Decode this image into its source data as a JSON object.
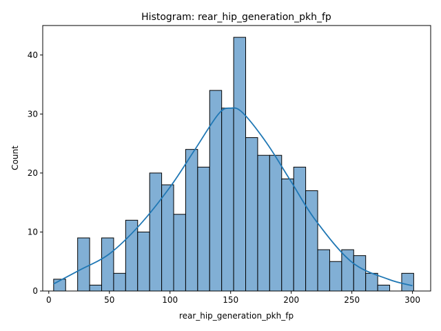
{
  "chart_data": {
    "type": "bar",
    "title": "Histogram: rear_hip_generation_pkh_fp",
    "xlabel": "rear_hip_generation_pkh_fp",
    "ylabel": "Count",
    "xlim": [
      -5,
      315
    ],
    "ylim": [
      0,
      45
    ],
    "xticks": [
      0,
      50,
      100,
      150,
      200,
      250,
      300
    ],
    "yticks": [
      0,
      10,
      20,
      30,
      40
    ],
    "bin_start": 4,
    "bin_width": 9.9,
    "counts": [
      2,
      0,
      9,
      1,
      9,
      3,
      12,
      10,
      20,
      18,
      13,
      24,
      21,
      34,
      31,
      43,
      26,
      23,
      23,
      19,
      21,
      17,
      7,
      5,
      7,
      6,
      3,
      1,
      0,
      3
    ],
    "kde_curve": {
      "x": [
        4,
        25,
        50,
        75,
        100,
        120,
        140,
        150,
        160,
        180,
        200,
        220,
        250,
        280,
        300
      ],
      "y": [
        1.2,
        3.5,
        6.3,
        11.2,
        17.6,
        23.8,
        30.0,
        31.0,
        30.2,
        25.0,
        18.5,
        12.0,
        4.9,
        2.0,
        0.9
      ]
    },
    "bar_color": "#81afd5",
    "bar_edge_color": "#000000",
    "kde_color": "#1f77b4",
    "grid": false,
    "legend": "none"
  }
}
